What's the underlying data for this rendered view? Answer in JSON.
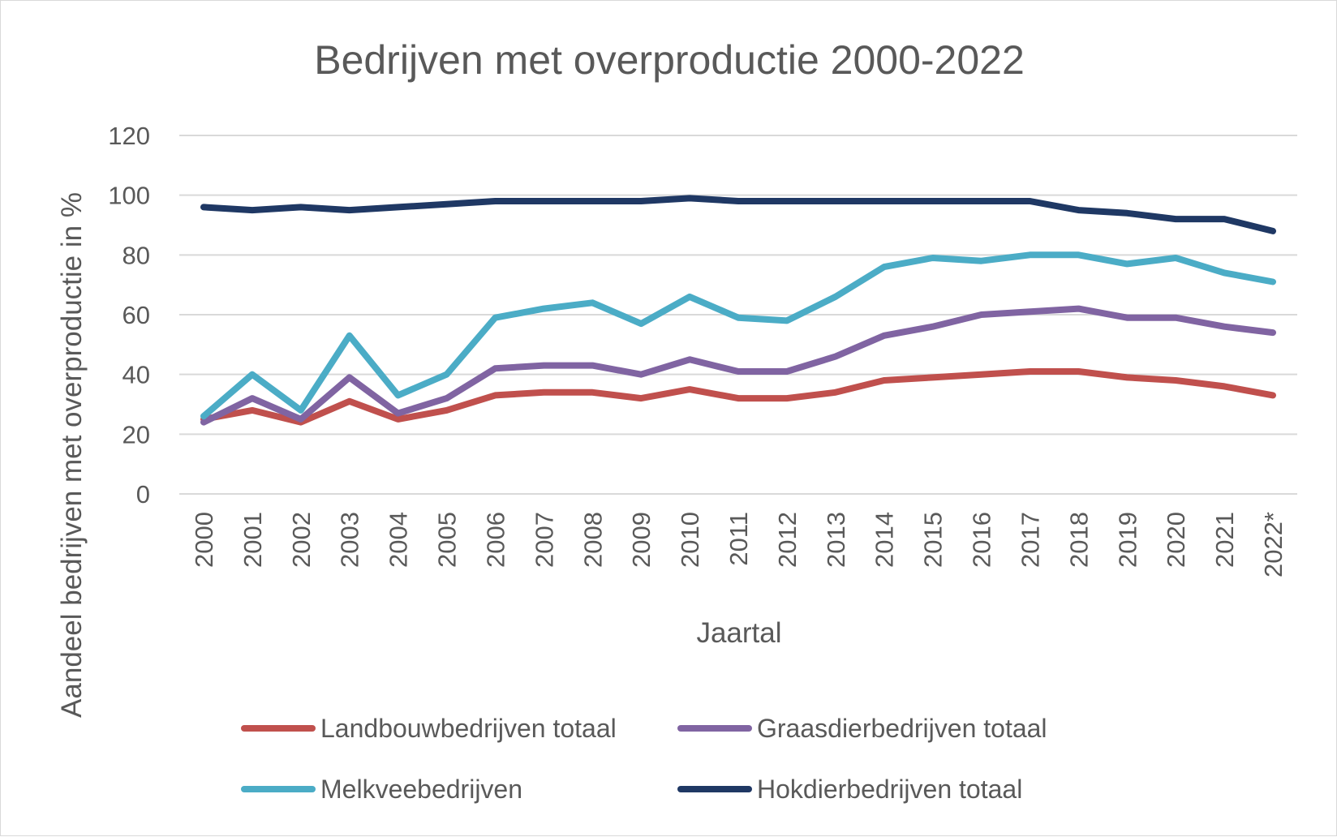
{
  "chart_data": {
    "type": "line",
    "title": "Bedrijven met overproductie 2000-2022",
    "xlabel": "Jaartal",
    "ylabel": "Aandeel bedrijven met overproductie in %",
    "ylim": [
      0,
      120
    ],
    "yticks": [
      "0",
      "20",
      "40",
      "60",
      "80",
      "100",
      "120"
    ],
    "grid": true,
    "legend_position": "bottom",
    "categories": [
      "2000",
      "2001",
      "2002",
      "2003",
      "2004",
      "2005",
      "2006",
      "2007",
      "2008",
      "2009",
      "2010",
      "2011",
      "2012",
      "2013",
      "2014",
      "2015",
      "2016",
      "2017",
      "2018",
      "2019",
      "2020",
      "2021",
      "2022*"
    ],
    "series": [
      {
        "name": "Landbouwbedrijven totaal",
        "color": "#c0504d",
        "values": [
          25,
          28,
          24,
          31,
          25,
          28,
          33,
          34,
          34,
          32,
          35,
          32,
          32,
          34,
          38,
          39,
          40,
          41,
          41,
          39,
          38,
          36,
          33
        ]
      },
      {
        "name": "Graasdierbedrijven totaal",
        "color": "#8064a2",
        "values": [
          24,
          32,
          25,
          39,
          27,
          32,
          42,
          43,
          43,
          40,
          45,
          41,
          41,
          46,
          53,
          56,
          60,
          61,
          62,
          59,
          59,
          56,
          54
        ]
      },
      {
        "name": "Melkveebedrijven",
        "color": "#4bacc6",
        "values": [
          26,
          40,
          28,
          53,
          33,
          40,
          59,
          62,
          64,
          57,
          66,
          59,
          58,
          66,
          76,
          79,
          78,
          80,
          80,
          77,
          79,
          74,
          71
        ]
      },
      {
        "name": "Hokdierbedrijven totaal",
        "color": "#1f3864",
        "values": [
          96,
          95,
          96,
          95,
          96,
          97,
          98,
          98,
          98,
          98,
          99,
          98,
          98,
          98,
          98,
          98,
          98,
          98,
          95,
          94,
          92,
          92,
          88
        ]
      }
    ]
  }
}
